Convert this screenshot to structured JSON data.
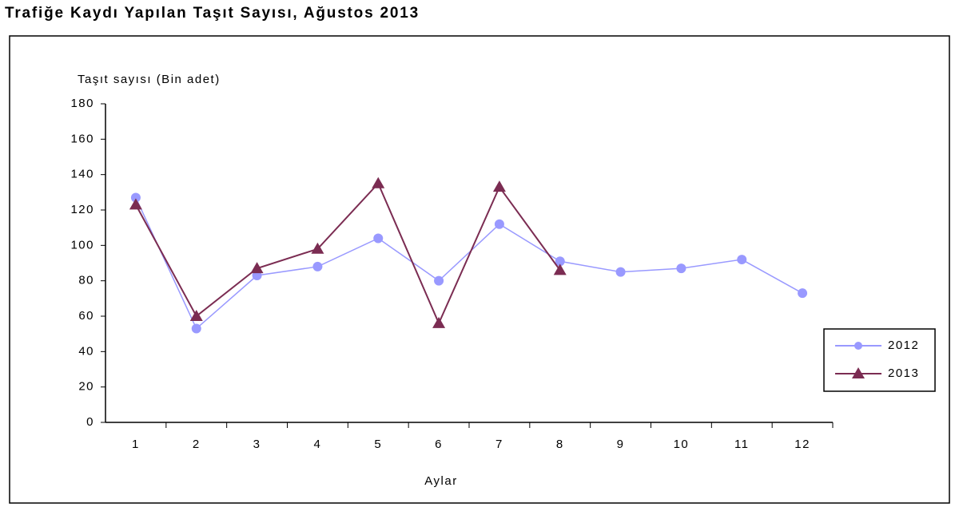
{
  "chart_data": {
    "type": "line",
    "title": "Trafiğe Kaydı Yapılan Taşıt Sayısı, Ağustos 2013",
    "y_label": "Taşıt sayısı (Bin adet)",
    "x_label": "Aylar",
    "categories": [
      "1",
      "2",
      "3",
      "4",
      "5",
      "6",
      "7",
      "8",
      "9",
      "10",
      "11",
      "12"
    ],
    "series": [
      {
        "name": "2012",
        "color": "#9999ff",
        "marker": "circle",
        "values": [
          127,
          53,
          83,
          88,
          104,
          80,
          112,
          91,
          85,
          87,
          92,
          73
        ]
      },
      {
        "name": "2013",
        "color": "#7b2c52",
        "marker": "triangle",
        "values": [
          123,
          60,
          87,
          98,
          135,
          56,
          133,
          86,
          null,
          null,
          null,
          null
        ]
      }
    ],
    "ylim": [
      0,
      180
    ],
    "yticks": [
      0,
      20,
      40,
      60,
      80,
      100,
      120,
      140,
      160,
      180
    ],
    "grid": false,
    "legend": "right"
  }
}
